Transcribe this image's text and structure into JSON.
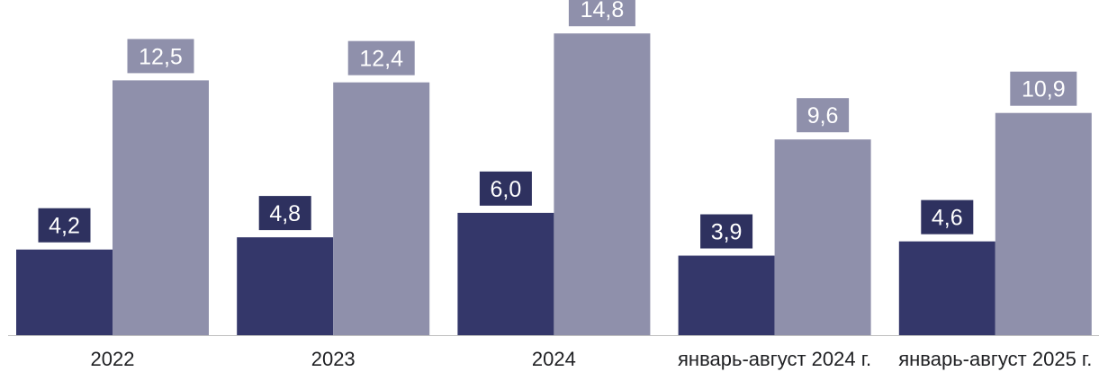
{
  "chart_data": {
    "type": "bar",
    "categories": [
      "2022",
      "2023",
      "2024",
      "январь-август 2024 г.",
      "январь-август 2025 г."
    ],
    "series": [
      {
        "values": [
          4.2,
          4.8,
          6.0,
          3.9,
          4.6
        ],
        "labels": [
          "4,2",
          "4,8",
          "6,0",
          "3,9",
          "4,6"
        ],
        "color": "#34376a"
      },
      {
        "values": [
          12.5,
          12.4,
          14.8,
          9.6,
          10.9
        ],
        "labels": [
          "12,5",
          "12,4",
          "14,8",
          "9,6",
          "10,9"
        ],
        "color": "#8f90ab"
      }
    ],
    "ylim": [
      0,
      16
    ],
    "title": "",
    "xlabel": "",
    "ylabel": "",
    "grid": false,
    "legend": "none",
    "colors": {
      "axis": "#bfbfbf",
      "label_box_dark": "#2e315f",
      "label_box_light": "#8f90ab",
      "label_text": "#ffffff",
      "tick_text": "#202124"
    }
  }
}
